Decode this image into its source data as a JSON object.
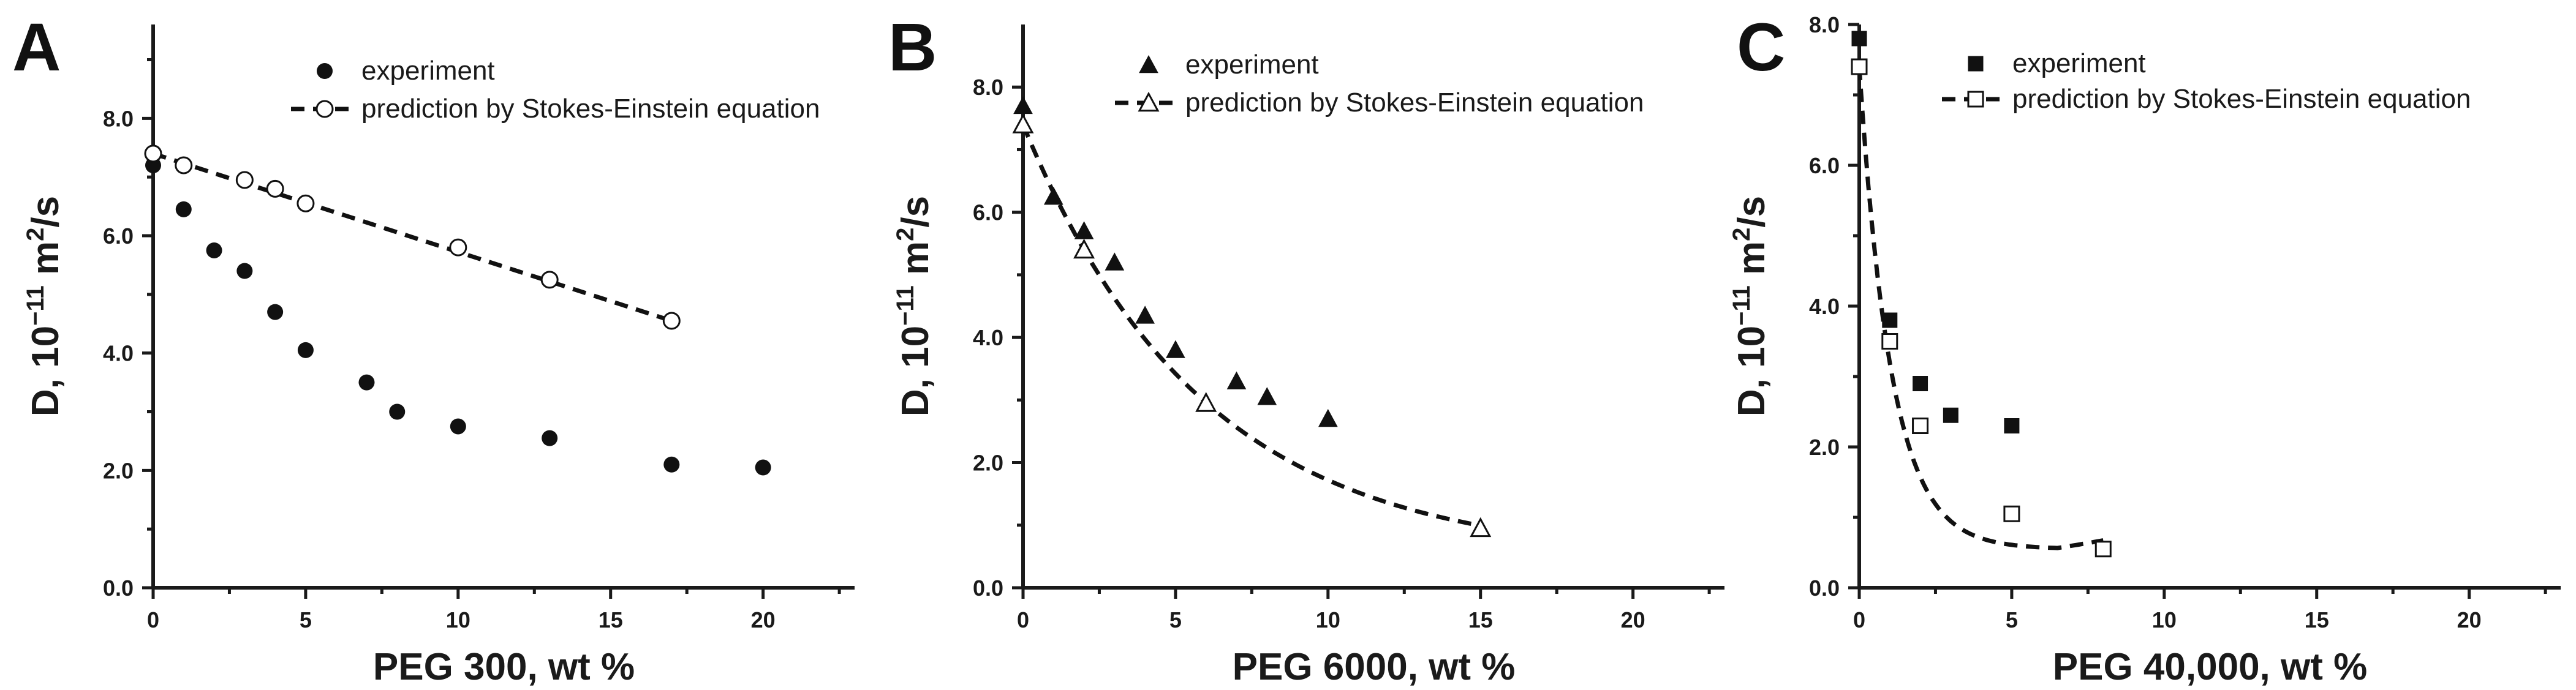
{
  "chart_data": [
    {
      "panel": "A",
      "type": "scatter",
      "xlabel": "PEG 300, wt %",
      "ylabel_main": "D, 10",
      "ylabel_sup": "−11",
      "ylabel_rest": " m",
      "ylabel_sup2": "2",
      "ylabel_end": "/s",
      "xlim": [
        0,
        23
      ],
      "ylim": [
        0,
        9.6
      ],
      "xticks": [
        0,
        5,
        10,
        15,
        20
      ],
      "yticks": [
        0,
        2,
        4,
        6,
        8
      ],
      "ytick_labels": [
        "0.0",
        "2.0",
        "4.0",
        "6.0",
        "8.0"
      ],
      "legend": [
        "experiment",
        "prediction by Stokes-Einstein equation"
      ],
      "series": [
        {
          "name": "experiment",
          "marker": "filled-circle",
          "x": [
            0,
            1,
            2,
            3,
            4,
            5,
            7,
            8,
            10,
            13,
            17,
            20
          ],
          "y": [
            7.2,
            6.45,
            5.75,
            5.4,
            4.7,
            4.05,
            3.5,
            3.0,
            2.75,
            2.55,
            2.1,
            2.05
          ]
        },
        {
          "name": "prediction by Stokes-Einstein equation",
          "marker": "open-circle",
          "x": [
            0,
            1,
            3,
            4,
            5,
            10,
            13,
            17
          ],
          "y": [
            7.4,
            7.2,
            6.95,
            6.8,
            6.55,
            5.8,
            5.25,
            4.55
          ],
          "line": "dashed-linear"
        }
      ]
    },
    {
      "panel": "B",
      "type": "scatter",
      "xlabel": "PEG 6000, wt %",
      "ylabel_main": "D, 10",
      "ylabel_sup": "−11",
      "ylabel_rest": " m",
      "ylabel_sup2": "2",
      "ylabel_end": "/s",
      "xlim": [
        0,
        23
      ],
      "ylim": [
        0,
        9.0
      ],
      "xticks": [
        0,
        5,
        10,
        15,
        20
      ],
      "yticks": [
        0,
        2,
        4,
        6,
        8
      ],
      "ytick_labels": [
        "0.0",
        "2.0",
        "4.0",
        "6.0",
        "8.0"
      ],
      "legend": [
        "experiment",
        "prediction by Stokes-Einstein equation"
      ],
      "series": [
        {
          "name": "experiment",
          "marker": "filled-triangle",
          "x": [
            0,
            1,
            2,
            3,
            4,
            5,
            7,
            8,
            10
          ],
          "y": [
            7.7,
            6.25,
            5.7,
            5.2,
            4.35,
            3.8,
            3.3,
            3.05,
            2.7
          ]
        },
        {
          "name": "prediction by Stokes-Einstein equation",
          "marker": "open-triangle",
          "x": [
            0,
            2,
            6,
            15
          ],
          "y": [
            7.4,
            5.4,
            2.95,
            0.95
          ],
          "line": "dashed-curve"
        }
      ]
    },
    {
      "panel": "C",
      "type": "scatter",
      "xlabel": "PEG 40,000, wt %",
      "ylabel_main": "D, 10",
      "ylabel_sup": "−11",
      "ylabel_rest": " m",
      "ylabel_sup2": "2",
      "ylabel_end": "/s",
      "xlim": [
        0,
        23
      ],
      "ylim": [
        0,
        8.0
      ],
      "xticks": [
        0,
        5,
        10,
        15,
        20
      ],
      "yticks": [
        0,
        2,
        4,
        6,
        8
      ],
      "ytick_labels": [
        "0.0",
        "2.0",
        "4.0",
        "6.0",
        "8.0"
      ],
      "legend": [
        "experiment",
        "prediction by Stokes-Einstein equation"
      ],
      "series": [
        {
          "name": "experiment",
          "marker": "filled-square",
          "x": [
            0,
            1,
            2,
            3,
            5
          ],
          "y": [
            7.8,
            3.8,
            2.9,
            2.45,
            2.3
          ]
        },
        {
          "name": "prediction by Stokes-Einstein equation",
          "marker": "open-square",
          "x": [
            0,
            1,
            2,
            5,
            8
          ],
          "y": [
            7.4,
            3.5,
            2.3,
            1.05,
            0.55
          ],
          "line": "dashed-curve"
        }
      ]
    }
  ]
}
